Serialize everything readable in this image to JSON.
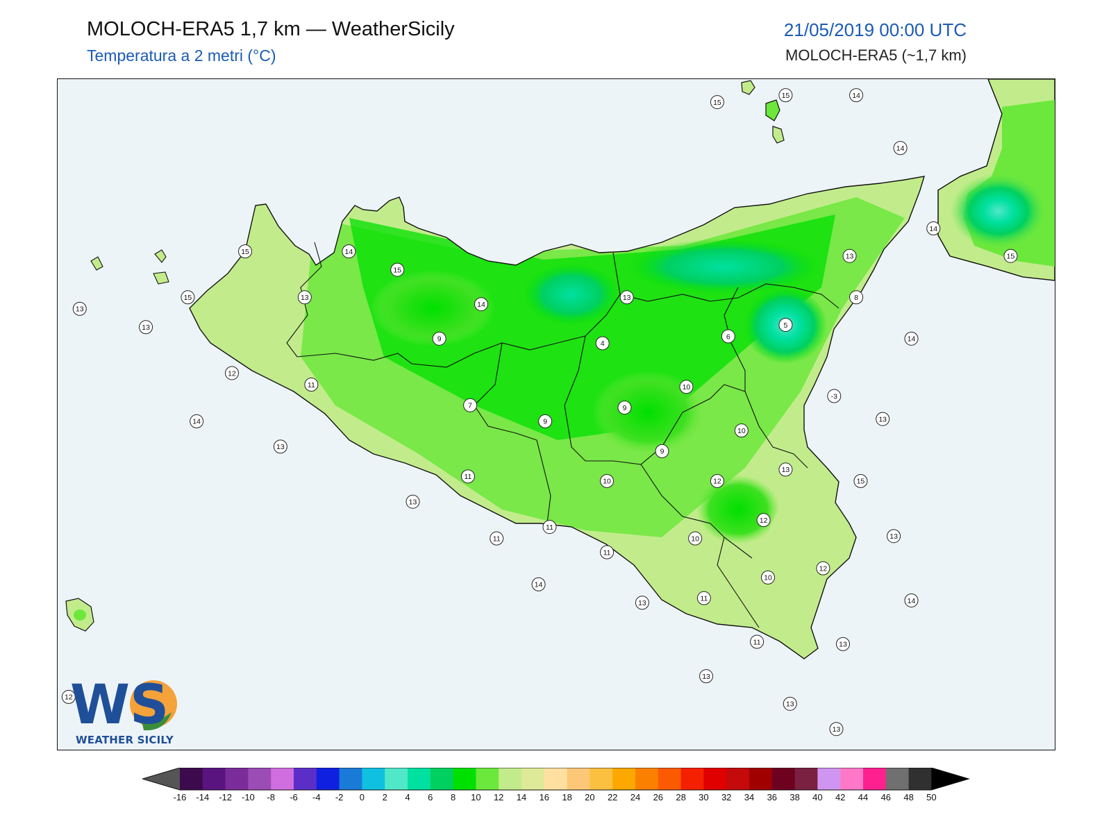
{
  "header": {
    "title": "MOLOCH-ERA5 1,7 km — WeatherSicily",
    "subtitle": "Temperatura a 2 metri (°C)",
    "datetime": "21/05/2019 00:00 UTC",
    "model": "MOLOCH-ERA5 (~1,7 km)"
  },
  "logo": {
    "letters": "WS",
    "text": "WEATHER SICILY"
  },
  "colors": {
    "sea": "#edf4f8",
    "border": "#111111",
    "accent_blue": "#1a5bb5"
  },
  "map": {
    "point_values": [
      {
        "v": "15",
        "lon": 14.92,
        "lat": 38.8
      },
      {
        "v": "15",
        "lon": 15.23,
        "lat": 38.83
      },
      {
        "v": "14",
        "lon": 15.55,
        "lat": 38.83
      },
      {
        "v": "14",
        "lon": 15.75,
        "lat": 38.6
      },
      {
        "v": "14",
        "lon": 15.9,
        "lat": 38.25
      },
      {
        "v": "15",
        "lon": 16.25,
        "lat": 38.13
      },
      {
        "v": "13",
        "lon": 15.52,
        "lat": 38.13
      },
      {
        "v": "15",
        "lon": 12.78,
        "lat": 38.15
      },
      {
        "v": "14",
        "lon": 13.25,
        "lat": 38.15
      },
      {
        "v": "15",
        "lon": 13.47,
        "lat": 38.07
      },
      {
        "v": "15",
        "lon": 12.52,
        "lat": 37.95
      },
      {
        "v": "13",
        "lon": 13.05,
        "lat": 37.95
      },
      {
        "v": "13",
        "lon": 12.03,
        "lat": 37.9
      },
      {
        "v": "13",
        "lon": 12.33,
        "lat": 37.82
      },
      {
        "v": "14",
        "lon": 13.85,
        "lat": 37.92
      },
      {
        "v": "13",
        "lon": 14.51,
        "lat": 37.95
      },
      {
        "v": "8",
        "lon": 15.55,
        "lat": 37.95
      },
      {
        "v": "5",
        "lon": 15.23,
        "lat": 37.83
      },
      {
        "v": "6",
        "lon": 14.97,
        "lat": 37.78
      },
      {
        "v": "14",
        "lon": 15.8,
        "lat": 37.77
      },
      {
        "v": "9",
        "lon": 13.66,
        "lat": 37.77
      },
      {
        "v": "4",
        "lon": 14.4,
        "lat": 37.75
      },
      {
        "v": "12",
        "lon": 12.72,
        "lat": 37.62
      },
      {
        "v": "11",
        "lon": 13.08,
        "lat": 37.57
      },
      {
        "v": "10",
        "lon": 14.78,
        "lat": 37.56
      },
      {
        "v": "-3",
        "lon": 15.45,
        "lat": 37.52
      },
      {
        "v": "7",
        "lon": 13.8,
        "lat": 37.48
      },
      {
        "v": "9",
        "lon": 14.5,
        "lat": 37.47
      },
      {
        "v": "9",
        "lon": 14.14,
        "lat": 37.41
      },
      {
        "v": "14",
        "lon": 12.56,
        "lat": 37.41
      },
      {
        "v": "13",
        "lon": 15.67,
        "lat": 37.42
      },
      {
        "v": "10",
        "lon": 15.03,
        "lat": 37.37
      },
      {
        "v": "13",
        "lon": 12.94,
        "lat": 37.3
      },
      {
        "v": "9",
        "lon": 14.67,
        "lat": 37.28
      },
      {
        "v": "13",
        "lon": 15.23,
        "lat": 37.2
      },
      {
        "v": "11",
        "lon": 13.79,
        "lat": 37.17
      },
      {
        "v": "12",
        "lon": 14.92,
        "lat": 37.15
      },
      {
        "v": "15",
        "lon": 15.57,
        "lat": 37.15
      },
      {
        "v": "10",
        "lon": 14.42,
        "lat": 37.15
      },
      {
        "v": "13",
        "lon": 13.54,
        "lat": 37.06
      },
      {
        "v": "12",
        "lon": 15.13,
        "lat": 36.98
      },
      {
        "v": "11",
        "lon": 14.16,
        "lat": 36.95
      },
      {
        "v": "11",
        "lon": 13.92,
        "lat": 36.9
      },
      {
        "v": "10",
        "lon": 14.82,
        "lat": 36.9
      },
      {
        "v": "13",
        "lon": 15.72,
        "lat": 36.91
      },
      {
        "v": "11",
        "lon": 14.42,
        "lat": 36.84
      },
      {
        "v": "12",
        "lon": 15.4,
        "lat": 36.77
      },
      {
        "v": "10",
        "lon": 15.15,
        "lat": 36.73
      },
      {
        "v": "14",
        "lon": 14.11,
        "lat": 36.7
      },
      {
        "v": "11",
        "lon": 14.86,
        "lat": 36.64
      },
      {
        "v": "13",
        "lon": 14.58,
        "lat": 36.62
      },
      {
        "v": "14",
        "lon": 15.8,
        "lat": 36.63
      },
      {
        "v": "11",
        "lon": 15.1,
        "lat": 36.45
      },
      {
        "v": "13",
        "lon": 15.49,
        "lat": 36.44
      },
      {
        "v": "13",
        "lon": 14.87,
        "lat": 36.3
      },
      {
        "v": "13",
        "lon": 15.25,
        "lat": 36.18
      },
      {
        "v": "13",
        "lon": 15.46,
        "lat": 36.07
      },
      {
        "v": "12",
        "lon": 11.98,
        "lat": 36.21
      }
    ]
  },
  "colorbar": {
    "ticks": [
      "-16",
      "-14",
      "-12",
      "-10",
      "-8",
      "-6",
      "-4",
      "-2",
      "0",
      "2",
      "4",
      "6",
      "8",
      "10",
      "12",
      "14",
      "16",
      "18",
      "20",
      "22",
      "24",
      "26",
      "28",
      "30",
      "32",
      "34",
      "36",
      "38",
      "40",
      "42",
      "44",
      "46",
      "48",
      "50"
    ],
    "colors": [
      "#3d0a4d",
      "#5a1480",
      "#7b2c9b",
      "#9c4db5",
      "#d06ee0",
      "#5c2ec8",
      "#1020e0",
      "#1a7ad8",
      "#10c0e0",
      "#50e8c8",
      "#00e0a0",
      "#00d060",
      "#00e000",
      "#6ce83c",
      "#c2ec8c",
      "#deea98",
      "#ffe0a0",
      "#fcc878",
      "#fcc040",
      "#fca800",
      "#fc8000",
      "#fc5a00",
      "#f42000",
      "#e00000",
      "#c40a0a",
      "#a00000",
      "#6e0020",
      "#7a2040",
      "#d095f0",
      "#ff78c8",
      "#ff2090",
      "#707070",
      "#303030"
    ]
  }
}
